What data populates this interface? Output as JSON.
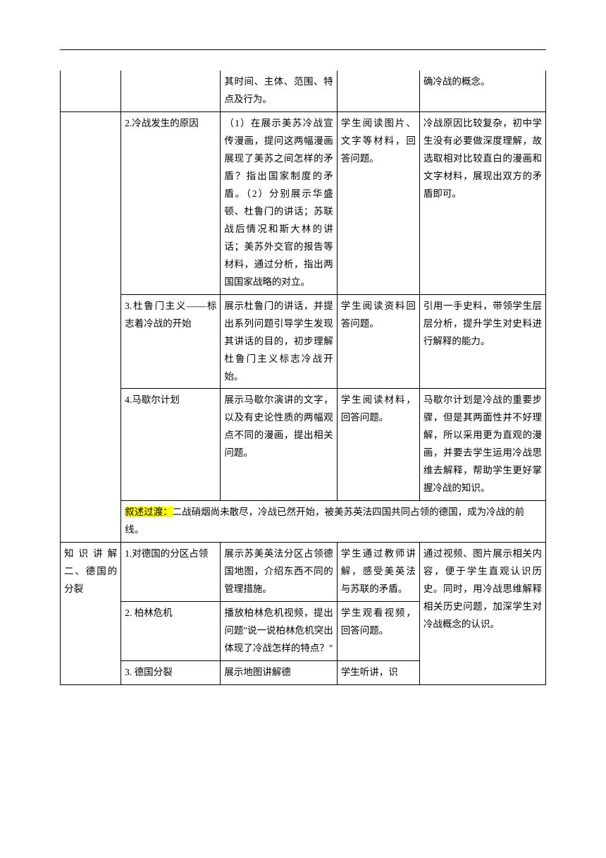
{
  "table": {
    "border_color": "#000000",
    "background_color": "#ffffff",
    "text_color": "#000000",
    "highlight_color": "#ffff00",
    "font_size": 13.5,
    "line_height": 1.85,
    "column_widths": [
      "12.5%",
      "20.5%",
      "24%",
      "17%",
      "26%"
    ],
    "rows": [
      {
        "cells": [
          {
            "text": ""
          },
          {
            "text": ""
          },
          {
            "text": "其时间、主体、范围、特点及行为。"
          },
          {
            "text": ""
          },
          {
            "text": "确冷战的概念。"
          }
        ],
        "no_top_border": true
      },
      {
        "cells": [
          {
            "text": "",
            "rowspan": 4
          },
          {
            "text": "2.冷战发生的原因"
          },
          {
            "text": "（1）在展示美苏冷战宣传漫画，提问这两幅漫画展现了美苏之间怎样的矛盾？指出国家制度的矛盾。（2）分别展示华盛顿、杜鲁门的讲话；苏联战后情况和斯大林的讲话；美苏外交官的报告等材料，通过分析，指出两国国家战略的对立。"
          },
          {
            "text": "学生阅读图片、文字等材料，回答问题。"
          },
          {
            "text": "冷战原因比较复杂，初中学生没有必要做深度理解，故选取相对比较直白的漫画和文字材料，展现出双方的矛盾即可。"
          }
        ]
      },
      {
        "cells": [
          {
            "text": "3.杜鲁门主义——标志着冷战的开始"
          },
          {
            "text": "展示杜鲁门的讲话，并提出系列问题引导学生发现其讲话的目的，初步理解杜鲁门主义标志冷战开始。"
          },
          {
            "text": "学生阅读资料回答问题。"
          },
          {
            "text": "引用一手史料，带领学生层层分析，提升学生对史料进行解释的能力。"
          }
        ]
      },
      {
        "cells": [
          {
            "text": "4.马歇尔计划"
          },
          {
            "text": "展示马歇尔演讲的文字，以及有史论性质的两幅观点不同的漫画，提出相关问题。"
          },
          {
            "text": "学生阅读材料，回答问题。"
          },
          {
            "text": "马歇尔计划是冷战的重要步骤，但是其两面性并不好理解，所以采用更为直观的漫画，并要去学生运用冷战思维去解释，帮助学生更好掌握冷战的知识。"
          }
        ]
      },
      {
        "cells": [
          {
            "text_pre": "叙述过渡：",
            "text_post": "二战硝烟尚未散尽，冷战已然开始，被美苏英法四国共同占领的德国，成为冷战的前线。",
            "colspan": 4,
            "highlight": true
          }
        ]
      },
      {
        "cells": [
          {
            "text": "知识讲解二、德国的分裂",
            "rowspan": 3
          },
          {
            "text": "1.对德国的分区占领"
          },
          {
            "text": "展示苏美英法分区占领德国地图，介绍东西不同的管理措施。"
          },
          {
            "text": "学生通过教师讲解，感受美英法与苏联的矛盾。"
          },
          {
            "text": "通过视频、图片展示相关内容，便于学生直观认识历史。同时，用冷战思维解释相关历史问题，加深学生对冷战概念的认识。",
            "rowspan": 3
          }
        ]
      },
      {
        "cells": [
          {
            "text": "2. 柏林危机"
          },
          {
            "text": "播放柏林危机视频，提出问题\"说一说柏林危机突出体现了冷战怎样的特点？\""
          },
          {
            "text": "学生观看视频，回答问题。"
          }
        ]
      },
      {
        "cells": [
          {
            "text": "3. 德国分裂"
          },
          {
            "text": "展示地图讲解德"
          },
          {
            "text": "学生听讲，识"
          }
        ],
        "no_bottom_content": true
      }
    ]
  }
}
